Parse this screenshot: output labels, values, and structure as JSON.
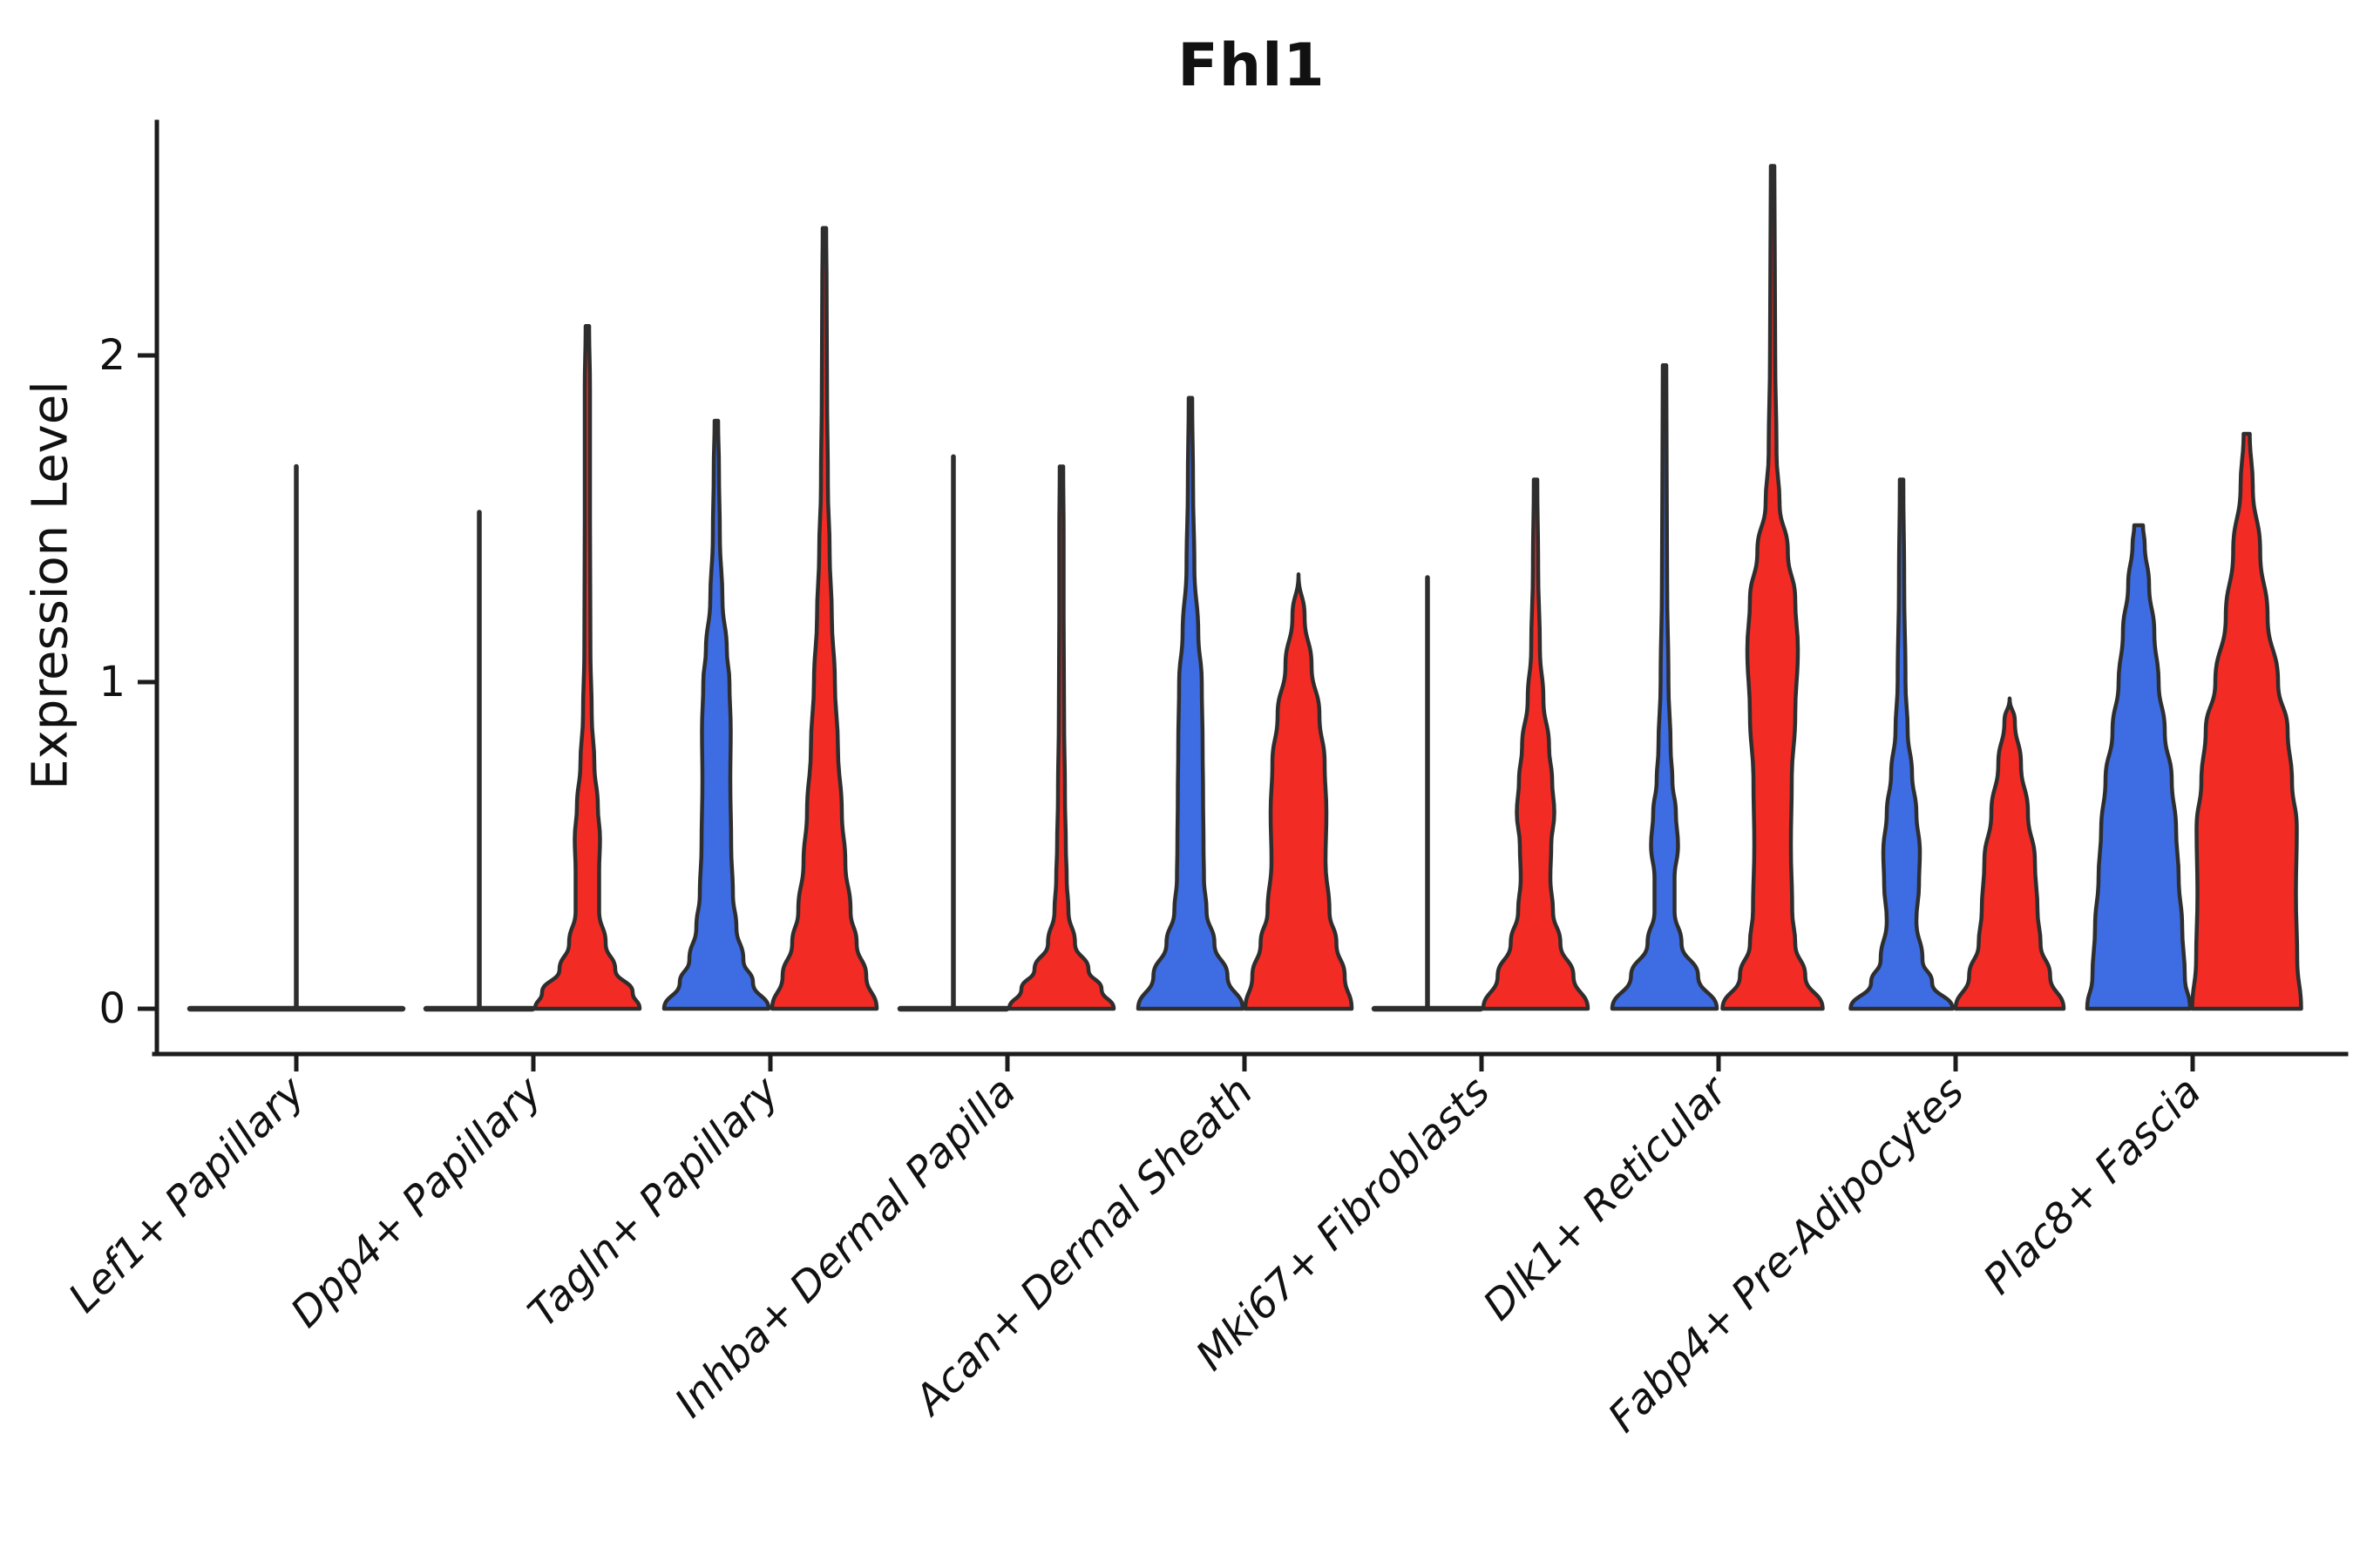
{
  "title": "Fhl1",
  "y_axis": {
    "label": "Expression Level",
    "ticks": [
      "0",
      "1",
      "2"
    ],
    "tick_values": [
      0,
      1,
      2
    ]
  },
  "colors": {
    "blue": "#3D6CE3",
    "red": "#F22B24",
    "outline": "#2E2E2E",
    "axis": "#1C1C1C",
    "text": "#111111"
  },
  "chart_data": {
    "type": "violin",
    "title": "Fhl1",
    "xlabel": "",
    "ylabel": "Expression Level",
    "ylim": [
      0,
      2.71
    ],
    "yticks": [
      0,
      1,
      2
    ],
    "grid": false,
    "legend": "none",
    "groups": [
      "blue",
      "red"
    ],
    "note": "split violin plot; profile = [expression_value, full_width_px]; kind line = fully flat violin (density collapsed at 0) with max whisker spike",
    "categories": [
      {
        "label": "Lef1+ Papillary",
        "violins": [
          {
            "group": "dark",
            "kind": "line",
            "center": 0,
            "base_width": 244,
            "max": 1.66
          }
        ]
      },
      {
        "label": "Dpp4+ Papillary",
        "violins": [
          {
            "group": "blue",
            "kind": "line",
            "center": -62,
            "base_width": 122,
            "max": 1.52
          },
          {
            "group": "red",
            "kind": "violin",
            "center": 62,
            "max": 2.09,
            "profile": [
              [
                0,
                120
              ],
              [
                0.05,
                104
              ],
              [
                0.12,
                64
              ],
              [
                0.2,
                42
              ],
              [
                0.3,
                27
              ],
              [
                0.42,
                27
              ],
              [
                0.52,
                29
              ],
              [
                0.62,
                24
              ],
              [
                0.75,
                16
              ],
              [
                0.9,
                10
              ],
              [
                1.1,
                7
              ],
              [
                1.5,
                6
              ],
              [
                1.9,
                6
              ],
              [
                2.09,
                4
              ]
            ]
          }
        ]
      },
      {
        "label": "Tagln+ Papillary",
        "violins": [
          {
            "group": "blue",
            "kind": "violin",
            "center": -62,
            "max": 1.8,
            "profile": [
              [
                0,
                120
              ],
              [
                0.08,
                84
              ],
              [
                0.15,
                62
              ],
              [
                0.25,
                46
              ],
              [
                0.35,
                38
              ],
              [
                0.5,
                34
              ],
              [
                0.7,
                32
              ],
              [
                0.85,
                33
              ],
              [
                1.0,
                30
              ],
              [
                1.1,
                24
              ],
              [
                1.25,
                14
              ],
              [
                1.45,
                8
              ],
              [
                1.65,
                6
              ],
              [
                1.8,
                4
              ]
            ]
          },
          {
            "group": "red",
            "kind": "violin",
            "center": 62,
            "max": 2.39,
            "profile": [
              [
                0,
                120
              ],
              [
                0.1,
                96
              ],
              [
                0.2,
                74
              ],
              [
                0.3,
                60
              ],
              [
                0.45,
                48
              ],
              [
                0.6,
                40
              ],
              [
                0.8,
                31
              ],
              [
                1.0,
                24
              ],
              [
                1.2,
                17
              ],
              [
                1.4,
                12
              ],
              [
                1.6,
                8
              ],
              [
                1.9,
                6
              ],
              [
                2.2,
                5
              ],
              [
                2.39,
                4
              ]
            ]
          }
        ]
      },
      {
        "label": "Inhba+ Dermal Papilla",
        "violins": [
          {
            "group": "blue",
            "kind": "line",
            "center": -62,
            "base_width": 122,
            "max": 1.69
          },
          {
            "group": "red",
            "kind": "violin",
            "center": 62,
            "max": 1.66,
            "profile": [
              [
                0,
                120
              ],
              [
                0.06,
                92
              ],
              [
                0.12,
                62
              ],
              [
                0.2,
                31
              ],
              [
                0.3,
                16
              ],
              [
                0.4,
                12
              ],
              [
                0.5,
                10
              ],
              [
                0.65,
                8
              ],
              [
                0.9,
                6
              ],
              [
                1.2,
                5
              ],
              [
                1.45,
                5
              ],
              [
                1.66,
                4
              ]
            ]
          }
        ]
      },
      {
        "label": "Acan+ Dermal Sheath",
        "violins": [
          {
            "group": "blue",
            "kind": "violin",
            "center": -62,
            "max": 1.87,
            "profile": [
              [
                0,
                120
              ],
              [
                0.1,
                85
              ],
              [
                0.2,
                55
              ],
              [
                0.3,
                37
              ],
              [
                0.4,
                31
              ],
              [
                0.5,
                30
              ],
              [
                0.65,
                29
              ],
              [
                0.8,
                28
              ],
              [
                1.0,
                26
              ],
              [
                1.15,
                18
              ],
              [
                1.35,
                9
              ],
              [
                1.6,
                6
              ],
              [
                1.87,
                4
              ]
            ]
          },
          {
            "group": "red",
            "kind": "violin",
            "center": 62,
            "max": 1.33,
            "profile": [
              [
                0,
                122
              ],
              [
                0.1,
                106
              ],
              [
                0.2,
                87
              ],
              [
                0.3,
                71
              ],
              [
                0.45,
                62
              ],
              [
                0.6,
                64
              ],
              [
                0.75,
                60
              ],
              [
                0.9,
                48
              ],
              [
                1.05,
                30
              ],
              [
                1.2,
                14
              ],
              [
                1.33,
                0
              ]
            ]
          }
        ]
      },
      {
        "label": "Mki67+ Fibroblasts",
        "violins": [
          {
            "group": "blue",
            "kind": "line",
            "center": -62,
            "base_width": 122,
            "max": 1.32
          },
          {
            "group": "red",
            "kind": "violin",
            "center": 62,
            "max": 1.62,
            "profile": [
              [
                0,
                120
              ],
              [
                0.1,
                87
              ],
              [
                0.2,
                57
              ],
              [
                0.3,
                40
              ],
              [
                0.4,
                34
              ],
              [
                0.5,
                36
              ],
              [
                0.6,
                43
              ],
              [
                0.7,
                38
              ],
              [
                0.8,
                31
              ],
              [
                0.95,
                18
              ],
              [
                1.1,
                10
              ],
              [
                1.35,
                6
              ],
              [
                1.62,
                4
              ]
            ]
          }
        ]
      },
      {
        "label": "Dlk1+ Reticular",
        "violins": [
          {
            "group": "blue",
            "kind": "violin",
            "center": -62,
            "max": 1.97,
            "profile": [
              [
                0,
                120
              ],
              [
                0.1,
                77
              ],
              [
                0.2,
                39
              ],
              [
                0.3,
                23
              ],
              [
                0.4,
                23
              ],
              [
                0.5,
                31
              ],
              [
                0.6,
                26
              ],
              [
                0.7,
                18
              ],
              [
                0.8,
                14
              ],
              [
                1.0,
                9
              ],
              [
                1.3,
                6
              ],
              [
                1.6,
                5
              ],
              [
                1.97,
                4
              ]
            ]
          },
          {
            "group": "red",
            "kind": "violin",
            "center": 62,
            "max": 2.58,
            "profile": [
              [
                0,
                115
              ],
              [
                0.1,
                75
              ],
              [
                0.2,
                52
              ],
              [
                0.3,
                45
              ],
              [
                0.5,
                42
              ],
              [
                0.7,
                44
              ],
              [
                0.9,
                52
              ],
              [
                1.1,
                58
              ],
              [
                1.25,
                52
              ],
              [
                1.4,
                35
              ],
              [
                1.55,
                16
              ],
              [
                1.7,
                9
              ],
              [
                2.0,
                6
              ],
              [
                2.3,
                5
              ],
              [
                2.58,
                4
              ]
            ]
          }
        ]
      },
      {
        "label": "Fabp4+ Pre-Adipocytes",
        "violins": [
          {
            "group": "blue",
            "kind": "violin",
            "center": -62,
            "max": 1.62,
            "profile": [
              [
                0,
                117
              ],
              [
                0.08,
                70
              ],
              [
                0.15,
                48
              ],
              [
                0.27,
                34
              ],
              [
                0.38,
                40
              ],
              [
                0.48,
                42
              ],
              [
                0.6,
                34
              ],
              [
                0.72,
                24
              ],
              [
                0.85,
                14
              ],
              [
                1.0,
                9
              ],
              [
                1.3,
                6
              ],
              [
                1.62,
                4
              ]
            ]
          },
          {
            "group": "red",
            "kind": "violin",
            "center": 62,
            "max": 0.95,
            "profile": [
              [
                0,
                124
              ],
              [
                0.1,
                93
              ],
              [
                0.2,
                71
              ],
              [
                0.3,
                64
              ],
              [
                0.45,
                58
              ],
              [
                0.6,
                42
              ],
              [
                0.75,
                26
              ],
              [
                0.88,
                12
              ],
              [
                0.95,
                0
              ]
            ]
          }
        ]
      },
      {
        "label": "Plac8+ Fascia",
        "violins": [
          {
            "group": "blue",
            "kind": "violin",
            "center": -62,
            "max": 1.48,
            "profile": [
              [
                0,
                118
              ],
              [
                0.1,
                106
              ],
              [
                0.25,
                100
              ],
              [
                0.4,
                92
              ],
              [
                0.55,
                86
              ],
              [
                0.7,
                76
              ],
              [
                0.85,
                60
              ],
              [
                1.0,
                46
              ],
              [
                1.15,
                36
              ],
              [
                1.3,
                24
              ],
              [
                1.42,
                14
              ],
              [
                1.48,
                10
              ]
            ]
          },
          {
            "group": "red",
            "kind": "violin",
            "center": 62,
            "max": 1.76,
            "profile": [
              [
                0,
                125
              ],
              [
                0.15,
                116
              ],
              [
                0.35,
                113
              ],
              [
                0.55,
                115
              ],
              [
                0.7,
                104
              ],
              [
                0.85,
                94
              ],
              [
                1.0,
                72
              ],
              [
                1.2,
                48
              ],
              [
                1.4,
                31
              ],
              [
                1.6,
                14
              ],
              [
                1.76,
                7
              ]
            ]
          }
        ]
      }
    ]
  }
}
